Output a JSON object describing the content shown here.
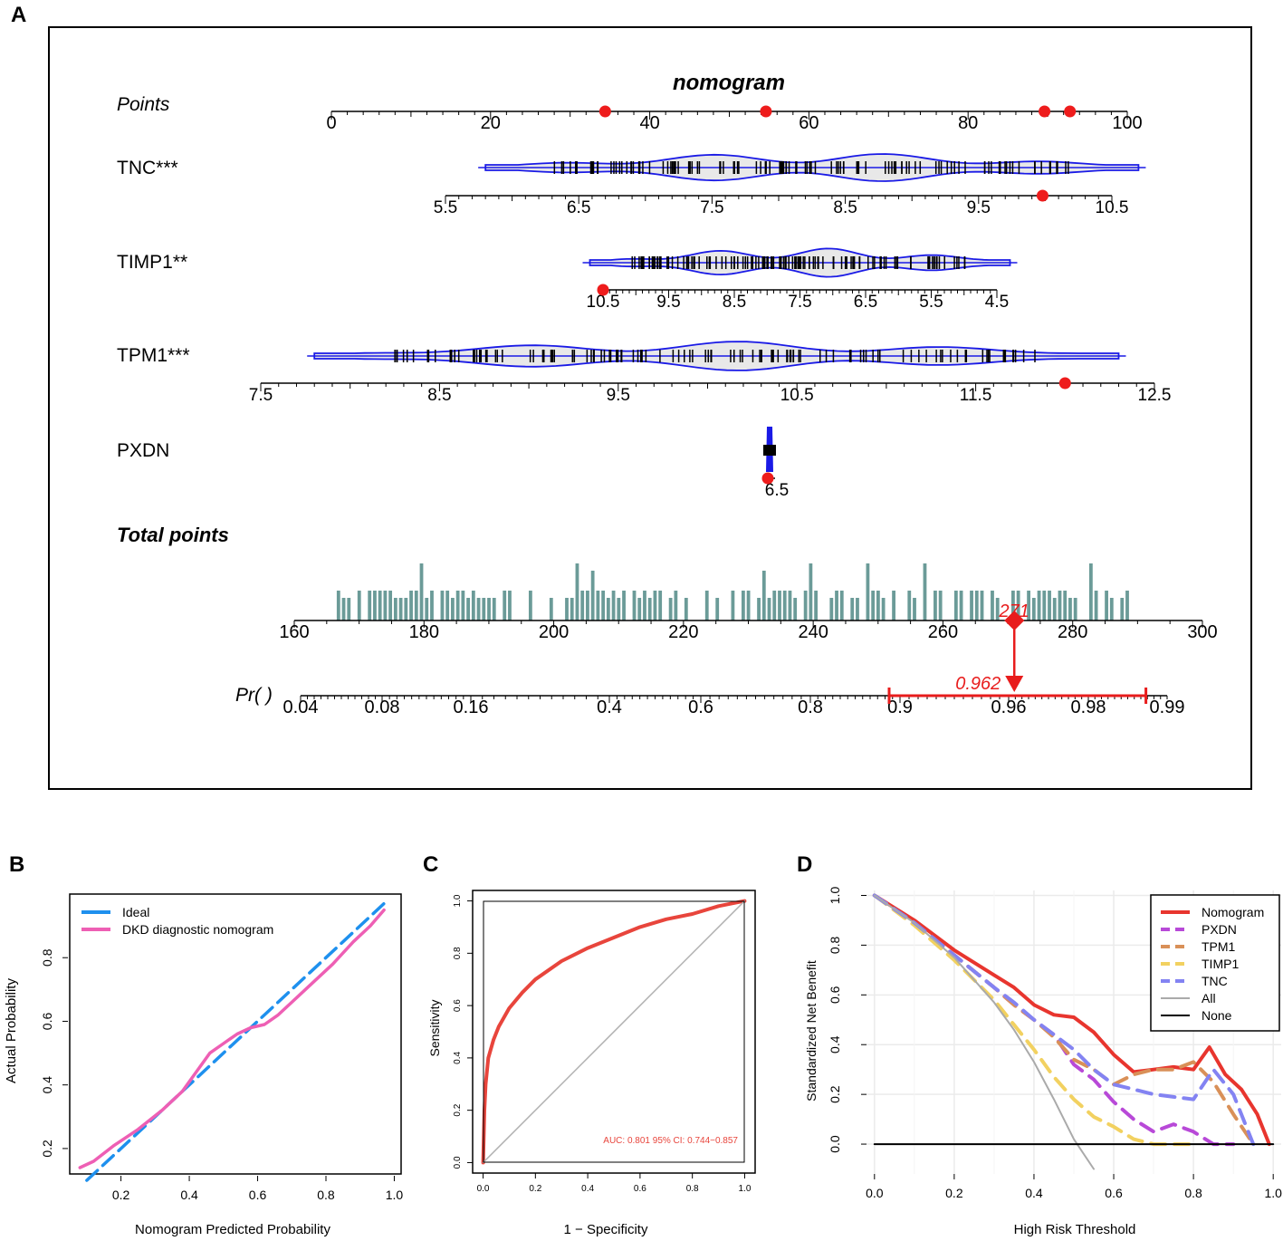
{
  "panels": {
    "a": "A",
    "b": "B",
    "c": "C",
    "d": "D"
  },
  "chart_data": [
    {
      "type": "nomogram",
      "panel": "A",
      "title": "nomogram",
      "points_axis": {
        "label": "Points",
        "range": [
          0,
          100
        ],
        "ticks": [
          0,
          20,
          40,
          60,
          80,
          100
        ]
      },
      "variables": [
        {
          "name": "TNC",
          "label": "TNC***",
          "axis_ticks": [
            "5.5",
            "6.5",
            "7.5",
            "8.5",
            "9.5",
            "10.5"
          ],
          "axis_values": [
            5.5,
            6.5,
            7.5,
            8.5,
            9.5,
            10.5
          ],
          "value_range": [
            5.8,
            10.7
          ],
          "selected_value": 9.98,
          "points": 89.6
        },
        {
          "name": "TIMP1",
          "label": "TIMP1**",
          "axis_ticks": [
            "10.5",
            "9.5",
            "8.5",
            "7.5",
            "6.5",
            "5.5",
            "4.5"
          ],
          "axis_values": [
            10.5,
            9.5,
            8.5,
            7.5,
            6.5,
            5.5,
            4.5
          ],
          "value_range": [
            4.3,
            10.7
          ],
          "selected_value": 10.5,
          "points": 34.4
        },
        {
          "name": "TPM1",
          "label": "TPM1***",
          "axis_ticks": [
            "7.5",
            "8.5",
            "9.5",
            "10.5",
            "11.5",
            "12.5"
          ],
          "axis_values": [
            7.5,
            8.5,
            9.5,
            10.5,
            11.5,
            12.5
          ],
          "value_range": [
            7.8,
            12.3
          ],
          "selected_value": 12.0,
          "points": 92.8
        },
        {
          "name": "PXDN",
          "label": "PXDN",
          "axis_ticks": [
            "6.5"
          ],
          "axis_values": [
            6.5
          ],
          "value_range": [
            6.5,
            6.5
          ],
          "selected_value": 6.5,
          "points": 54.6
        }
      ],
      "total_points": {
        "label": "Total points",
        "range": [
          160,
          300
        ],
        "ticks": [
          160,
          180,
          200,
          220,
          240,
          260,
          280,
          300
        ],
        "selected": 271,
        "selected_label": "271"
      },
      "probability": {
        "label": "Pr( )",
        "ticks": [
          "0.04",
          "0.08",
          "0.16",
          "0.4",
          "0.6",
          "0.8",
          "0.9",
          "0.96",
          "0.98",
          "0.99"
        ],
        "tick_values": [
          0.04,
          0.08,
          0.16,
          0.4,
          0.6,
          0.8,
          0.9,
          0.96,
          0.98,
          0.99
        ],
        "selected": 0.962,
        "selected_label": "0.962",
        "ci": [
          0.9,
          0.988
        ]
      }
    },
    {
      "type": "line",
      "panel": "B",
      "xlabel": "Nomogram Predicted Probability",
      "ylabel": "Actual Probability",
      "xlim": [
        0.05,
        1.02
      ],
      "ylim": [
        0.12,
        1.0
      ],
      "xticks": [
        "0.2",
        "0.4",
        "0.6",
        "0.8",
        "1.0"
      ],
      "yticks": [
        "0.2",
        "0.4",
        "0.6",
        "0.8"
      ],
      "series": [
        {
          "name": "Ideal",
          "color": "#1e90ee",
          "style": "dashed",
          "x": [
            0.1,
            0.97
          ],
          "y": [
            0.1,
            0.97
          ]
        },
        {
          "name": "DKD diagnostic nomogram",
          "color": "#ee5fb4",
          "style": "solid",
          "x": [
            0.08,
            0.12,
            0.18,
            0.25,
            0.32,
            0.38,
            0.42,
            0.46,
            0.5,
            0.54,
            0.58,
            0.62,
            0.66,
            0.7,
            0.76,
            0.82,
            0.88,
            0.93,
            0.97
          ],
          "y": [
            0.14,
            0.16,
            0.21,
            0.26,
            0.32,
            0.38,
            0.44,
            0.5,
            0.53,
            0.56,
            0.58,
            0.59,
            0.62,
            0.66,
            0.72,
            0.78,
            0.85,
            0.9,
            0.95
          ]
        }
      ],
      "legend": "top-left"
    },
    {
      "type": "line",
      "panel": "C",
      "xlabel": "1 − Specificity",
      "ylabel": "Sensitivity",
      "xlim": [
        -0.04,
        1.04
      ],
      "ylim": [
        -0.04,
        1.04
      ],
      "xticks": [
        "0.0",
        "0.2",
        "0.4",
        "0.6",
        "0.8",
        "1.0"
      ],
      "yticks": [
        "0.0",
        "0.2",
        "0.4",
        "0.6",
        "0.8",
        "1.0"
      ],
      "annotation": "AUC: 0.801   95% CI: 0.744−0.857",
      "series": [
        {
          "name": "ROC",
          "color": "#e8453c",
          "x": [
            0,
            0.005,
            0.01,
            0.02,
            0.04,
            0.06,
            0.1,
            0.15,
            0.2,
            0.3,
            0.4,
            0.5,
            0.6,
            0.7,
            0.8,
            0.9,
            1.0
          ],
          "y": [
            0,
            0.2,
            0.3,
            0.4,
            0.47,
            0.52,
            0.59,
            0.65,
            0.7,
            0.77,
            0.82,
            0.86,
            0.9,
            0.93,
            0.95,
            0.98,
            1.0
          ]
        },
        {
          "name": "Chance",
          "color": "#b0b0b0",
          "x": [
            0,
            1
          ],
          "y": [
            0,
            1
          ]
        }
      ]
    },
    {
      "type": "line",
      "panel": "D",
      "xlabel": "High Risk Threshold",
      "ylabel": "Standardized Net Benefit",
      "xlim": [
        -0.02,
        1.02
      ],
      "ylim": [
        -0.12,
        1.02
      ],
      "xticks": [
        "0.0",
        "0.2",
        "0.4",
        "0.6",
        "0.8",
        "1.0"
      ],
      "yticks": [
        "0.0",
        "0.2",
        "0.4",
        "0.6",
        "0.8",
        "1.0"
      ],
      "legend": "top-right",
      "series": [
        {
          "name": "Nomogram",
          "color": "#e8352e",
          "style": "solid",
          "x": [
            0,
            0.1,
            0.2,
            0.3,
            0.35,
            0.4,
            0.45,
            0.5,
            0.55,
            0.6,
            0.65,
            0.7,
            0.75,
            0.8,
            0.84,
            0.88,
            0.92,
            0.96,
            0.99
          ],
          "y": [
            1.0,
            0.9,
            0.78,
            0.68,
            0.63,
            0.56,
            0.52,
            0.51,
            0.45,
            0.36,
            0.29,
            0.3,
            0.31,
            0.3,
            0.39,
            0.28,
            0.22,
            0.12,
            0.0
          ]
        },
        {
          "name": "PXDN",
          "color": "#b849d8",
          "style": "dashed",
          "x": [
            0,
            0.1,
            0.2,
            0.3,
            0.35,
            0.4,
            0.45,
            0.5,
            0.55,
            0.6,
            0.65,
            0.7,
            0.75,
            0.8,
            0.85,
            0.9
          ],
          "y": [
            1.0,
            0.89,
            0.76,
            0.63,
            0.56,
            0.5,
            0.44,
            0.32,
            0.26,
            0.17,
            0.1,
            0.05,
            0.08,
            0.05,
            0.0,
            0.0
          ]
        },
        {
          "name": "TPM1",
          "color": "#d99058",
          "style": "dashed",
          "x": [
            0,
            0.1,
            0.2,
            0.3,
            0.35,
            0.4,
            0.45,
            0.5,
            0.55,
            0.6,
            0.65,
            0.7,
            0.75,
            0.8,
            0.85,
            0.9,
            0.95
          ],
          "y": [
            1.0,
            0.89,
            0.76,
            0.63,
            0.56,
            0.5,
            0.43,
            0.34,
            0.3,
            0.24,
            0.28,
            0.3,
            0.3,
            0.33,
            0.25,
            0.12,
            0.0
          ]
        },
        {
          "name": "TIMP1",
          "color": "#f2d160",
          "style": "dashed",
          "x": [
            0,
            0.1,
            0.2,
            0.3,
            0.35,
            0.4,
            0.45,
            0.5,
            0.55,
            0.6,
            0.65,
            0.7,
            0.75,
            0.8
          ],
          "y": [
            1.0,
            0.88,
            0.74,
            0.58,
            0.48,
            0.38,
            0.27,
            0.18,
            0.11,
            0.07,
            0.02,
            0.0,
            0.0,
            0.0
          ]
        },
        {
          "name": "TNC",
          "color": "#8383f2",
          "style": "dashed",
          "x": [
            0,
            0.1,
            0.2,
            0.3,
            0.35,
            0.4,
            0.45,
            0.5,
            0.55,
            0.6,
            0.65,
            0.7,
            0.75,
            0.8,
            0.85,
            0.9,
            0.95
          ],
          "y": [
            1.0,
            0.89,
            0.76,
            0.63,
            0.57,
            0.5,
            0.44,
            0.38,
            0.3,
            0.24,
            0.22,
            0.2,
            0.19,
            0.18,
            0.3,
            0.2,
            0.0
          ]
        },
        {
          "name": "All",
          "color": "#aaaaaa",
          "style": "solid",
          "x": [
            0,
            0.1,
            0.2,
            0.3,
            0.35,
            0.4,
            0.45,
            0.5,
            0.55
          ],
          "y": [
            1.0,
            0.89,
            0.75,
            0.57,
            0.46,
            0.33,
            0.18,
            0.02,
            -0.1
          ]
        },
        {
          "name": "None",
          "color": "#000000",
          "style": "solid",
          "x": [
            0,
            1
          ],
          "y": [
            0,
            0
          ]
        }
      ]
    }
  ]
}
